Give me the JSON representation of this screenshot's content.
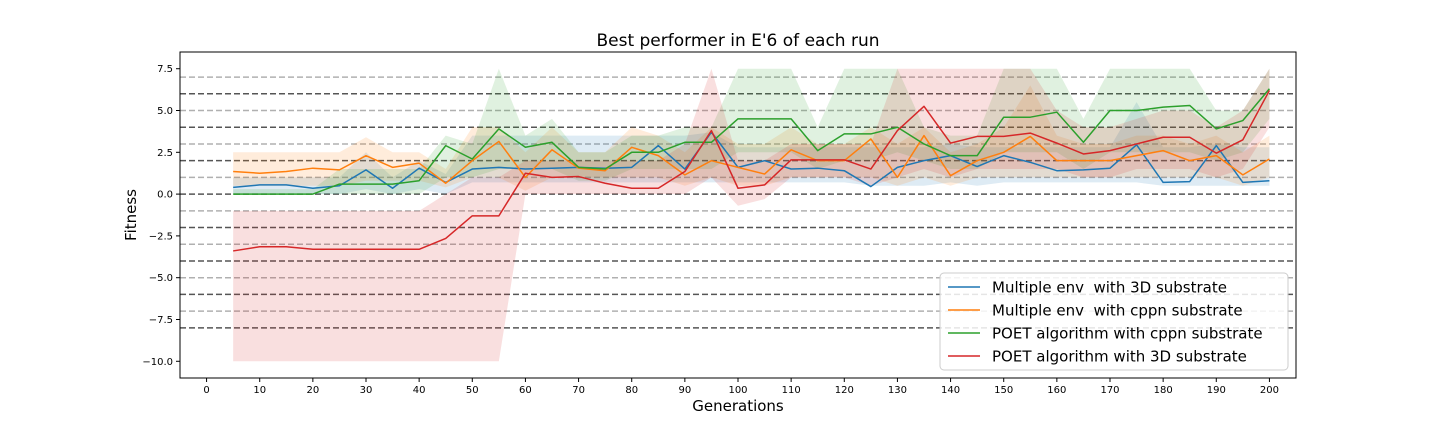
{
  "chart_data": {
    "type": "line",
    "title": "Best performer in E'6 of each run",
    "xlabel": "Generations",
    "ylabel": "Fitness",
    "xlim": [
      -5,
      205
    ],
    "ylim": [
      -11,
      8.5
    ],
    "x_ticks": [
      0,
      10,
      20,
      30,
      40,
      50,
      60,
      70,
      80,
      90,
      100,
      110,
      120,
      130,
      140,
      150,
      160,
      170,
      180,
      190,
      200
    ],
    "y_ticks": [
      -10.0,
      -7.5,
      -5.0,
      -2.5,
      0.0,
      2.5,
      5.0,
      7.5
    ],
    "y_tick_labels": [
      "−10.0",
      "−7.5",
      "−5.0",
      "−2.5",
      "0.0",
      "2.5",
      "5.0",
      "7.5"
    ],
    "hlines_dark": [
      -8,
      -6,
      -4,
      -2,
      0,
      2,
      4,
      6
    ],
    "hlines_light": [
      -7,
      -5,
      -3,
      -1,
      1,
      3,
      5,
      7
    ],
    "hline_dark_color": "#555555",
    "hline_light_color": "#b0b0b0",
    "legend_position": "lower-right",
    "x": [
      5,
      10,
      15,
      20,
      25,
      30,
      35,
      40,
      45,
      50,
      55,
      60,
      65,
      70,
      75,
      80,
      85,
      90,
      95,
      100,
      105,
      110,
      115,
      120,
      125,
      130,
      135,
      140,
      145,
      150,
      155,
      160,
      165,
      170,
      175,
      180,
      185,
      190,
      195,
      200
    ],
    "series": [
      {
        "name": "Multiple env  with 3D substrate",
        "color": "#1f77b4",
        "values": [
          0.4,
          0.55,
          0.55,
          0.35,
          0.5,
          1.45,
          0.35,
          1.55,
          0.7,
          1.5,
          1.6,
          1.5,
          1.55,
          1.6,
          1.55,
          1.6,
          2.9,
          1.5,
          3.7,
          1.6,
          2.0,
          1.5,
          1.55,
          1.4,
          0.45,
          1.6,
          2.0,
          2.3,
          1.65,
          2.3,
          1.9,
          1.4,
          1.45,
          1.55,
          2.95,
          0.7,
          0.75,
          2.9,
          0.7,
          0.8
        ],
        "band_low": [
          0.0,
          0.0,
          0.0,
          0.0,
          0.0,
          0.3,
          0.0,
          0.3,
          0.0,
          0.7,
          0.7,
          0.7,
          0.7,
          0.7,
          0.7,
          0.7,
          0.7,
          0.7,
          0.7,
          0.7,
          0.7,
          0.7,
          0.7,
          0.7,
          0.5,
          0.5,
          0.5,
          0.7,
          0.5,
          0.7,
          0.7,
          0.7,
          0.7,
          0.7,
          0.7,
          0.5,
          0.5,
          0.5,
          0.5,
          0.5
        ],
        "band_high": [
          1.0,
          1.0,
          1.0,
          1.0,
          1.0,
          2.5,
          1.0,
          2.0,
          1.2,
          3.5,
          3.5,
          3.5,
          3.5,
          3.5,
          3.5,
          3.5,
          3.5,
          3.5,
          3.7,
          2.8,
          2.8,
          2.8,
          2.8,
          2.8,
          2.8,
          2.8,
          2.8,
          3.0,
          2.8,
          2.8,
          2.8,
          2.8,
          2.8,
          2.8,
          5.5,
          2.8,
          2.8,
          3.0,
          2.8,
          2.8
        ]
      },
      {
        "name": "Multiple env  with cppn substrate",
        "color": "#ff7f0e",
        "values": [
          1.35,
          1.25,
          1.35,
          1.55,
          1.45,
          2.3,
          1.6,
          1.85,
          0.65,
          2.0,
          3.15,
          1.0,
          2.65,
          1.55,
          1.4,
          2.8,
          2.3,
          1.15,
          2.0,
          1.6,
          1.2,
          2.65,
          2.0,
          2.0,
          3.3,
          1.0,
          3.5,
          1.1,
          2.0,
          2.5,
          3.45,
          2.0,
          2.0,
          2.0,
          2.3,
          2.6,
          2.0,
          2.3,
          1.15,
          2.1
        ],
        "band_low": [
          0.5,
          0.5,
          0.5,
          0.5,
          0.5,
          0.8,
          0.8,
          0.8,
          0.4,
          1.0,
          1.0,
          0.2,
          1.0,
          1.0,
          1.0,
          1.0,
          1.0,
          0.5,
          1.0,
          0.5,
          0.5,
          1.0,
          1.0,
          1.0,
          1.0,
          0.5,
          1.0,
          0.5,
          1.0,
          1.0,
          1.0,
          1.0,
          1.0,
          1.0,
          1.0,
          1.0,
          1.0,
          1.0,
          0.5,
          1.0
        ],
        "band_high": [
          2.5,
          2.5,
          2.5,
          2.5,
          2.5,
          3.4,
          2.5,
          2.5,
          1.5,
          4.0,
          4.0,
          2.5,
          4.0,
          2.5,
          2.5,
          4.0,
          3.5,
          2.5,
          4.0,
          3.0,
          3.0,
          4.0,
          3.0,
          3.0,
          4.0,
          3.0,
          4.0,
          2.5,
          3.0,
          4.0,
          6.5,
          3.5,
          3.0,
          3.0,
          3.5,
          3.5,
          3.0,
          3.5,
          2.5,
          3.5
        ]
      },
      {
        "name": "POET algorithm with cppn substrate",
        "color": "#2ca02c",
        "values": [
          0.0,
          0.0,
          0.0,
          0.0,
          0.6,
          0.6,
          0.6,
          0.8,
          2.9,
          2.1,
          3.9,
          2.8,
          3.1,
          1.6,
          1.5,
          2.5,
          2.5,
          3.1,
          3.1,
          4.5,
          4.5,
          4.5,
          2.6,
          3.6,
          3.6,
          4.0,
          3.0,
          2.3,
          2.3,
          4.6,
          4.6,
          4.9,
          3.1,
          5.0,
          5.0,
          5.2,
          5.3,
          3.9,
          4.4,
          6.3
        ],
        "band_low": [
          0.0,
          0.0,
          0.0,
          0.0,
          0.0,
          0.0,
          0.0,
          0.0,
          1.0,
          1.0,
          1.5,
          1.5,
          1.5,
          0.8,
          0.8,
          1.5,
          1.5,
          1.5,
          1.5,
          2.5,
          2.5,
          2.5,
          1.5,
          2.0,
          2.0,
          2.5,
          2.0,
          1.5,
          1.5,
          2.5,
          2.5,
          2.5,
          1.5,
          2.5,
          2.5,
          2.5,
          2.5,
          2.0,
          2.5,
          4.5
        ],
        "band_high": [
          0.3,
          0.3,
          0.3,
          0.3,
          1.5,
          1.5,
          1.5,
          1.5,
          3.5,
          3.0,
          7.5,
          3.5,
          4.5,
          2.5,
          2.5,
          3.5,
          3.5,
          4.0,
          4.0,
          7.5,
          7.5,
          7.5,
          4.0,
          7.5,
          7.5,
          7.5,
          4.0,
          3.5,
          3.5,
          7.5,
          7.5,
          7.5,
          4.5,
          7.5,
          7.5,
          7.5,
          7.5,
          5.0,
          5.0,
          7.5
        ]
      },
      {
        "name": "POET algorithm with 3D substrate",
        "color": "#d62728",
        "values": [
          -3.4,
          -3.15,
          -3.15,
          -3.3,
          -3.3,
          -3.3,
          -3.3,
          -3.3,
          -2.65,
          -1.3,
          -1.3,
          1.25,
          1.0,
          1.05,
          0.65,
          0.35,
          0.35,
          1.35,
          3.8,
          0.35,
          0.55,
          2.05,
          2.05,
          2.05,
          1.5,
          3.8,
          5.25,
          3.05,
          3.45,
          3.45,
          3.65,
          3.05,
          2.4,
          2.6,
          3.0,
          3.4,
          3.4,
          2.45,
          3.25,
          6.2
        ],
        "band_low": [
          -10.0,
          -10.0,
          -10.0,
          -10.0,
          -10.0,
          -10.0,
          -10.0,
          -10.0,
          -10.0,
          -10.0,
          -10.0,
          0.0,
          0.0,
          0.0,
          0.0,
          0.0,
          0.0,
          0.0,
          1.0,
          -0.7,
          -0.3,
          1.0,
          1.0,
          1.0,
          0.5,
          1.0,
          1.5,
          1.0,
          1.5,
          1.5,
          1.5,
          1.5,
          1.0,
          1.0,
          1.5,
          1.5,
          1.5,
          1.0,
          1.5,
          4.0
        ],
        "band_high": [
          -1.0,
          -1.0,
          -1.0,
          -1.0,
          -1.0,
          -1.0,
          -1.0,
          -1.0,
          0.0,
          1.0,
          1.0,
          2.0,
          2.0,
          2.0,
          2.0,
          2.0,
          2.0,
          3.0,
          7.5,
          2.0,
          2.0,
          3.0,
          3.0,
          3.0,
          3.0,
          7.5,
          7.5,
          7.5,
          7.5,
          7.5,
          7.5,
          5.0,
          4.0,
          4.0,
          4.5,
          5.0,
          5.0,
          4.0,
          5.0,
          7.5
        ]
      }
    ]
  }
}
